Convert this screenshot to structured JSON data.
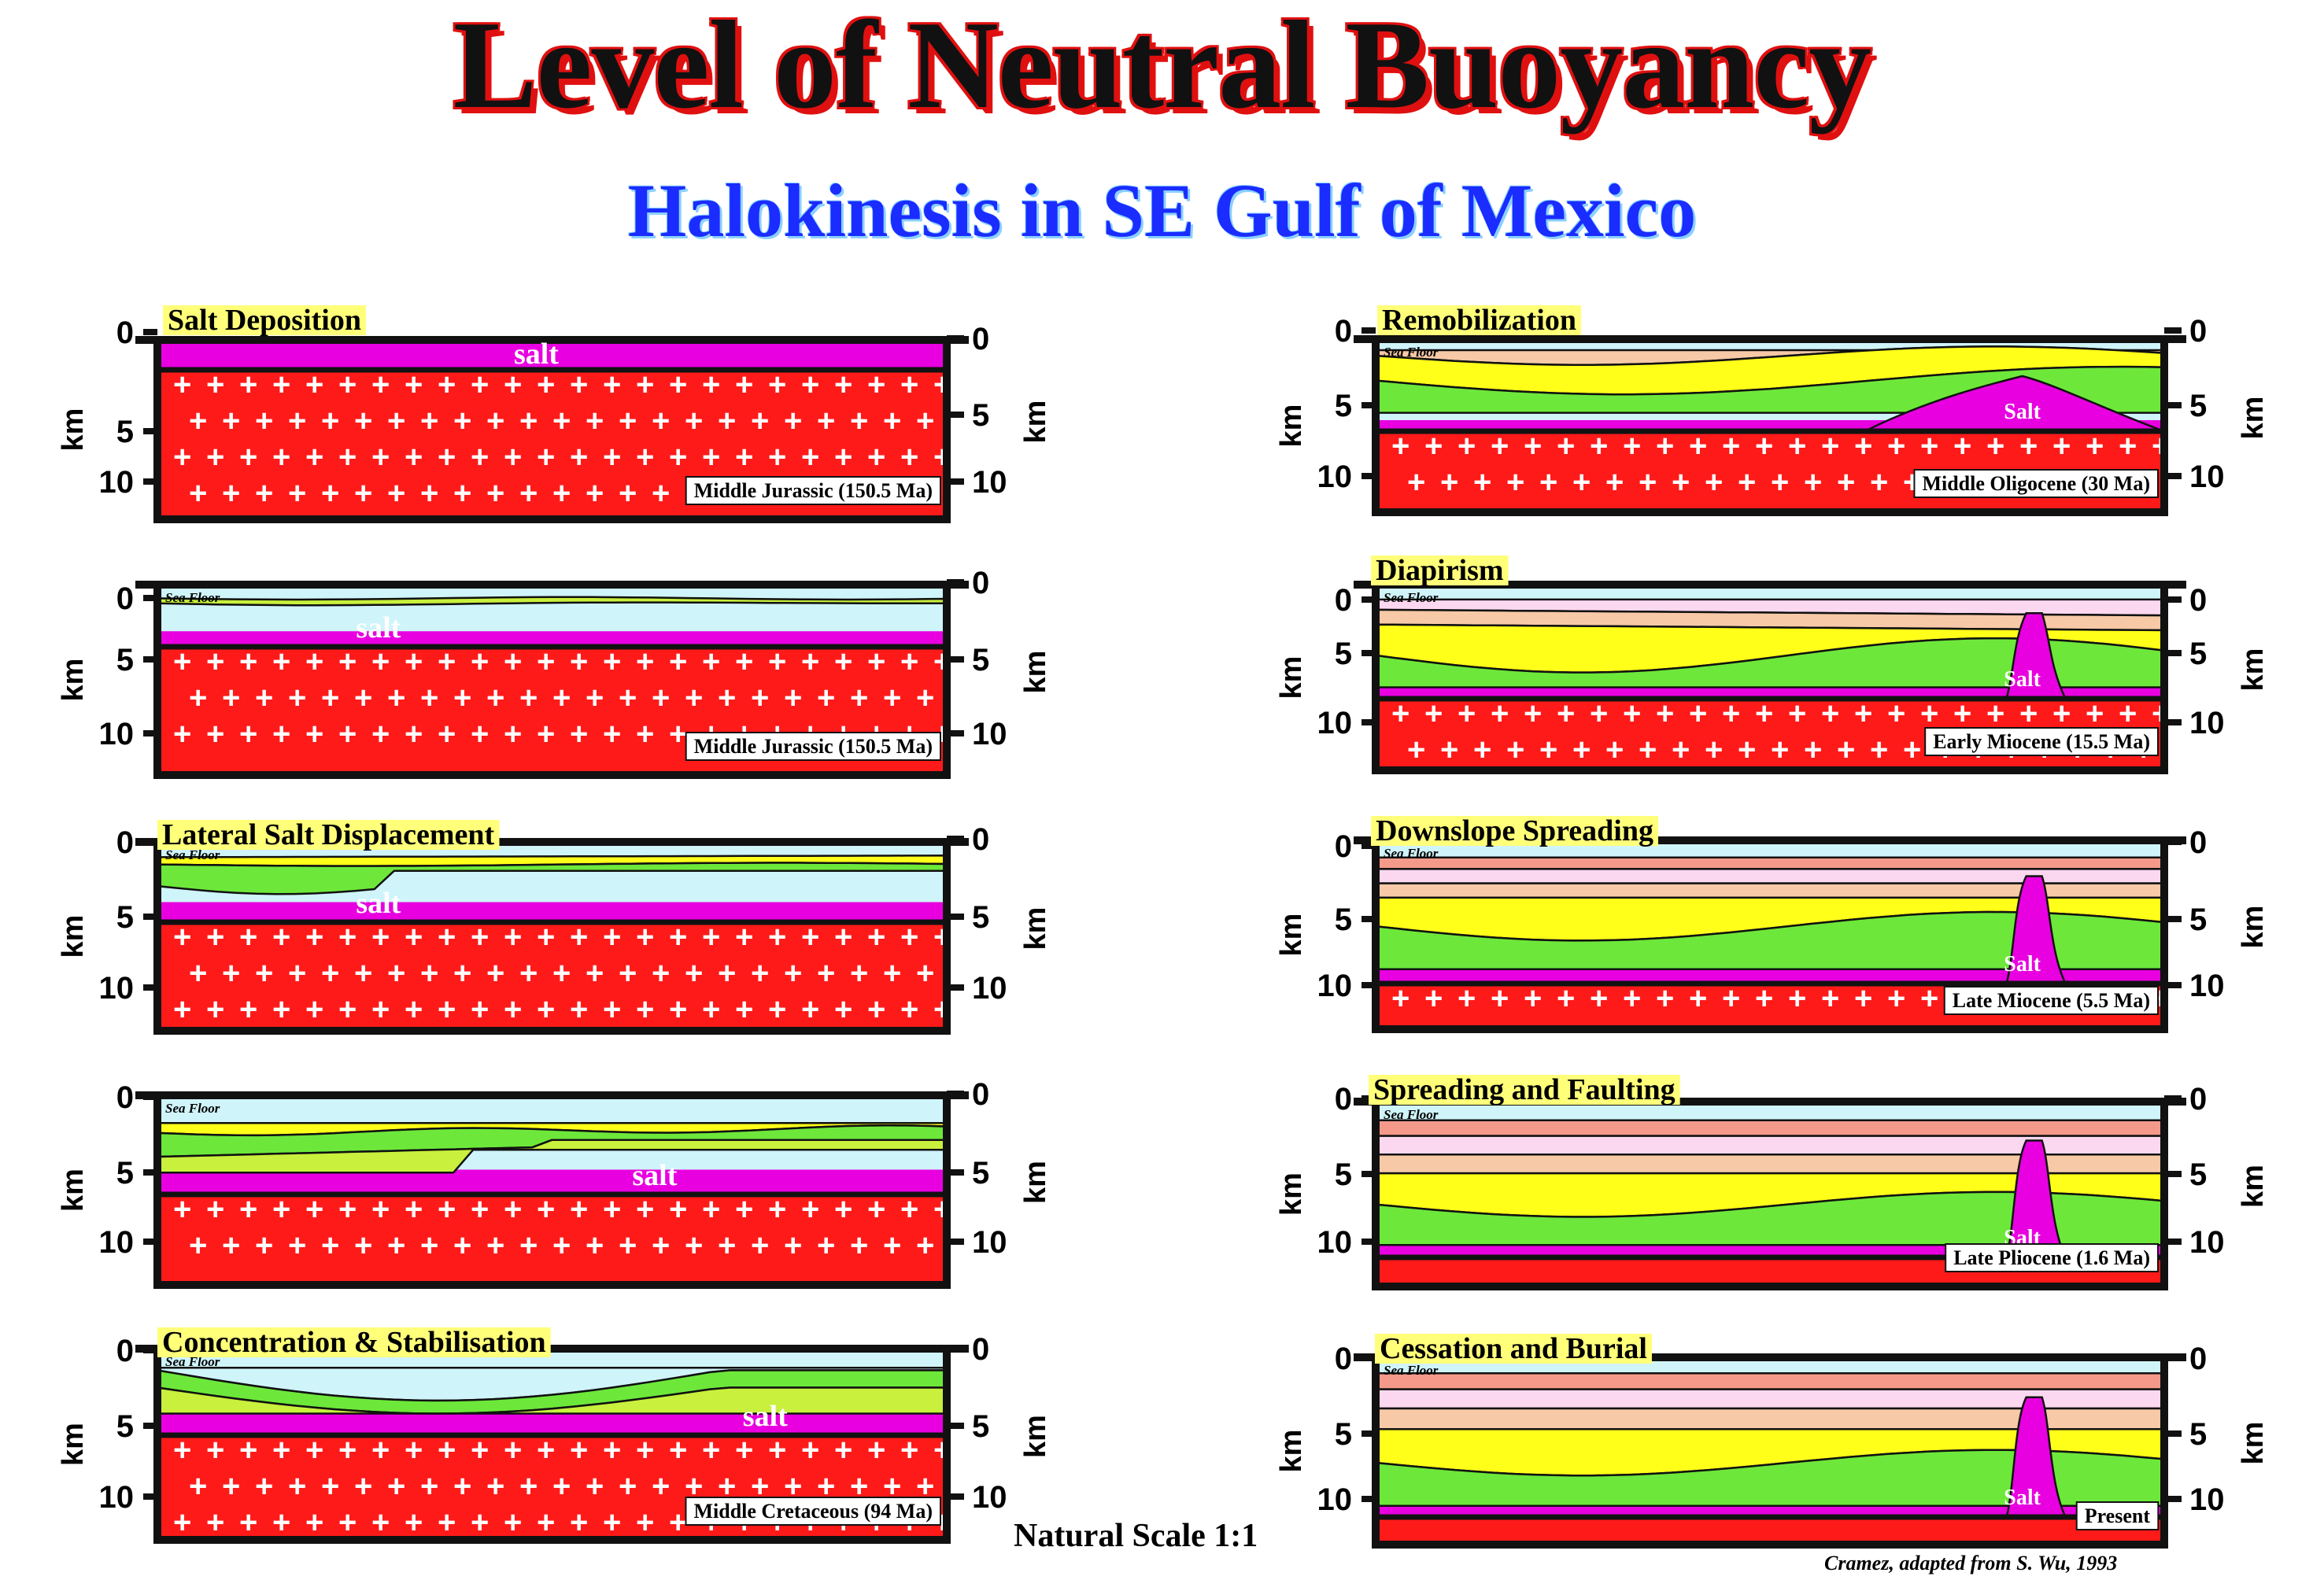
{
  "title": "Level of Neutral Buoyancy",
  "subtitle": "Halokinesis in SE Gulf of Mexico",
  "scale_note": "Natural Scale 1:1",
  "credit": "Cramez, adapted from  S. Wu, 1993",
  "labels": {
    "sea_floor": "Sea Floor",
    "km": "km",
    "ticks": [
      "0",
      "5",
      "10"
    ],
    "salt_lower": "salt",
    "salt_upper": "Salt",
    "plus": "+"
  },
  "colors": {
    "salt": "#e800e0",
    "basement": "#ff1a1a",
    "water": "#cff4fa",
    "yellow_sediment": "#ffff1a",
    "green_sediment": "#6de83a",
    "lime_sediment": "#c8f03c",
    "tan_sediment": "#f7c9a6",
    "pink_sediment": "#fcd8f0",
    "salmon_sediment": "#f59a8a",
    "title_stroke": "#e01010",
    "subtitle": "#1a2cff"
  },
  "panels": [
    {
      "id": "salt-deposition",
      "title": "Salt Deposition",
      "age": "Middle Jurassic (150.5 Ma)",
      "salt_label": "salt"
    },
    {
      "id": "early-burial",
      "title": "",
      "age": "Middle Jurassic (150.5 Ma)",
      "salt_label": "salt"
    },
    {
      "id": "lateral-salt-displacement",
      "title": "Lateral Salt Displacement",
      "age": "",
      "salt_label": "salt"
    },
    {
      "id": "continued-loading",
      "title": "",
      "age": "",
      "salt_label": "salt"
    },
    {
      "id": "concentration-stabilisation",
      "title": "Concentration & Stabilisation",
      "age": "Middle Cretaceous  (94 Ma)",
      "salt_label": "salt"
    },
    {
      "id": "remobilization",
      "title": "Remobilization",
      "age": "Middle Oligocene (30 Ma)",
      "salt_label": "Salt"
    },
    {
      "id": "diapirism",
      "title": "Diapirism",
      "age": "Early Miocene  (15.5 Ma)",
      "salt_label": "Salt"
    },
    {
      "id": "downslope-spreading",
      "title": "Downslope Spreading",
      "age": "Late Miocene (5.5 Ma)",
      "salt_label": "Salt"
    },
    {
      "id": "spreading-and-faulting",
      "title": "Spreading and Faulting",
      "age": "Late Pliocene (1.6 Ma)",
      "salt_label": "Salt"
    },
    {
      "id": "cessation-and-burial",
      "title": "Cessation and Burial",
      "age": "Present",
      "salt_label": "Salt"
    }
  ]
}
